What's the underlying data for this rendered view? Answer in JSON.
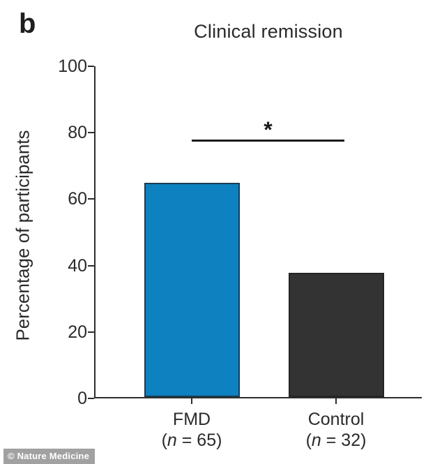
{
  "panel_label": "b",
  "watermark": "© Nature Medicine",
  "chart_data": {
    "type": "bar",
    "title": "Clinical remission",
    "xlabel": "",
    "ylabel": "Percentage of participants",
    "ylim": [
      0,
      100
    ],
    "yticks": [
      0,
      20,
      40,
      60,
      80,
      100
    ],
    "grid": false,
    "legend_position": "none",
    "categories": [
      "FMD",
      "Control"
    ],
    "category_sublabels": [
      {
        "pre": "(",
        "italic": "n",
        "post": " = 65)"
      },
      {
        "pre": "(",
        "italic": "n",
        "post": " = 32)"
      }
    ],
    "values": [
      64.6,
      37.5
    ],
    "bar_fill_colors": [
      "#0e81c0",
      "#333333"
    ],
    "bar_border_colors": [
      "#1b3c50",
      "#242424"
    ],
    "significance": {
      "label": "*",
      "y_value": 78,
      "between": [
        "FMD",
        "Control"
      ]
    }
  }
}
